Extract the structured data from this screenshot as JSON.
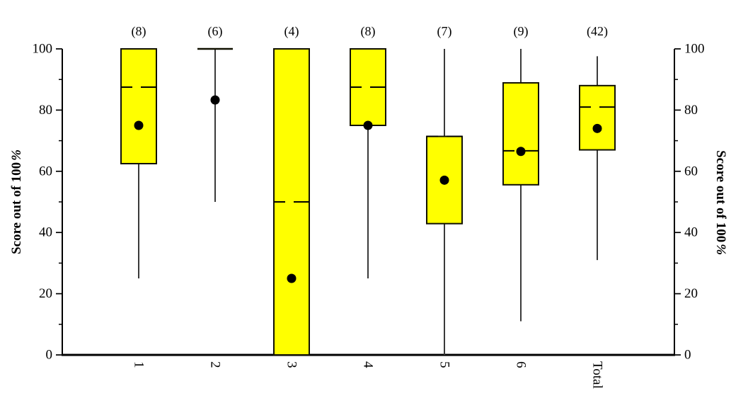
{
  "chart_data": {
    "type": "boxplot",
    "title": "",
    "categories": [
      "1",
      "2",
      "3",
      "4",
      "5",
      "6",
      "Total"
    ],
    "counts": [
      "(8)",
      "(6)",
      "(4)",
      "(8)",
      "(7)",
      "(9)",
      "(42)"
    ],
    "series": [
      {
        "category": "1",
        "n": 8,
        "whisker_low": 25,
        "q1": 62.5,
        "median": 87.5,
        "q3": 100,
        "whisker_high": 100,
        "mean": 75
      },
      {
        "category": "2",
        "n": 6,
        "whisker_low": 50,
        "q1": 100,
        "median": 100,
        "q3": 100,
        "whisker_high": 100,
        "mean": 83.3
      },
      {
        "category": "3",
        "n": 4,
        "whisker_low": 0,
        "q1": 0,
        "median": 50,
        "q3": 100,
        "whisker_high": 100,
        "mean": 25
      },
      {
        "category": "4",
        "n": 8,
        "whisker_low": 25,
        "q1": 75,
        "median": 87.5,
        "q3": 100,
        "whisker_high": 100,
        "mean": 75
      },
      {
        "category": "5",
        "n": 7,
        "whisker_low": 0,
        "q1": 42.9,
        "median": 71.4,
        "q3": 71.4,
        "whisker_high": 100,
        "mean": 57.1
      },
      {
        "category": "6",
        "n": 9,
        "whisker_low": 11,
        "q1": 55.6,
        "median": 66.7,
        "q3": 88.9,
        "whisker_high": 100,
        "mean": 66.5
      },
      {
        "category": "Total",
        "n": 42,
        "whisker_low": 31,
        "q1": 67,
        "median": 81,
        "q3": 88,
        "whisker_high": 97.6,
        "mean": 74
      }
    ],
    "y_axis": {
      "label_main": "Score out of 100",
      "label_suffix": "%",
      "min": 0,
      "max": 100,
      "major_ticks": [
        0,
        20,
        40,
        60,
        80,
        100
      ],
      "minor_ticks": [
        10,
        30,
        50,
        70,
        90
      ],
      "mirrored_right_axis": true
    },
    "x_axis": {
      "label": "",
      "tick_label_rotation_deg": 90
    },
    "legend": null,
    "grid": false,
    "colors": {
      "box_fill": "#ffff00",
      "box_stroke": "#111100",
      "whisker": "#3a3a3a",
      "median": "#000000",
      "mean_dot": "#000000",
      "axis": "#000000",
      "text": "#000000",
      "background": "#ffffff"
    }
  }
}
